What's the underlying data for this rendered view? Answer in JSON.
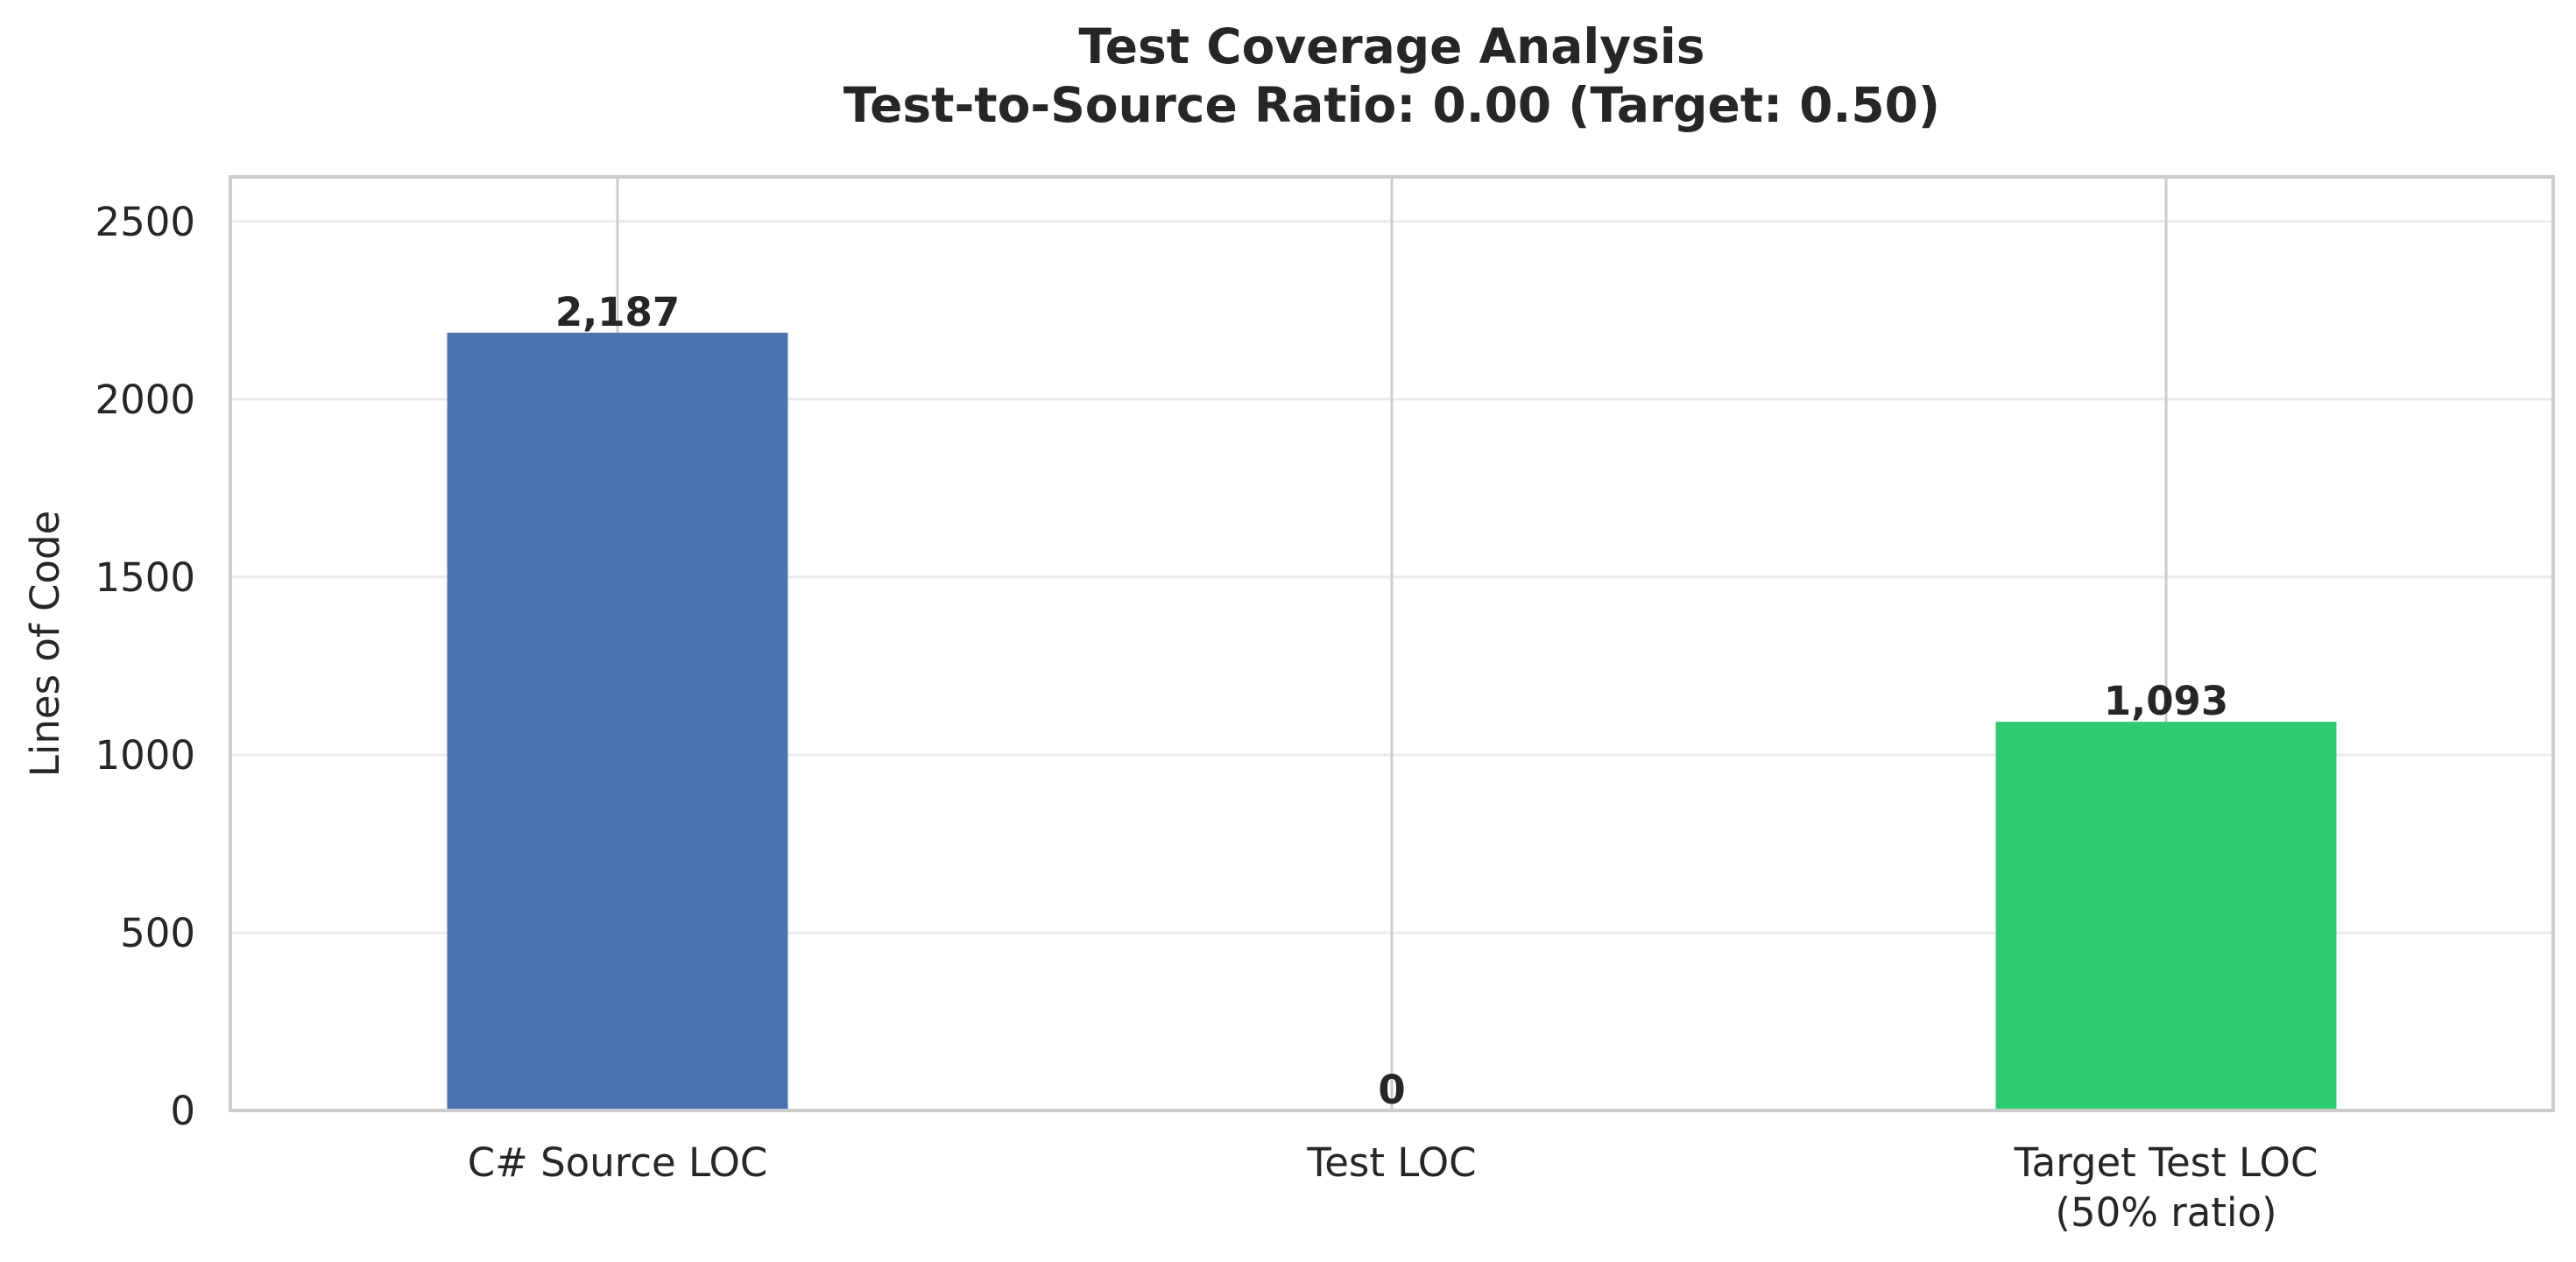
{
  "chart_data": {
    "type": "bar",
    "title": "Test Coverage Analysis",
    "subtitle": "Test-to-Source Ratio: 0.00 (Target: 0.50)",
    "ylabel": "Lines of Code",
    "xlabel": "",
    "categories": [
      [
        "C# Source LOC"
      ],
      [
        "Test LOC"
      ],
      [
        "Target Test LOC",
        "(50% ratio)"
      ]
    ],
    "values": [
      2187,
      0,
      1093
    ],
    "value_labels": [
      "2,187",
      "0",
      "1,093"
    ],
    "colors": [
      "#4c72b0",
      "#4c72b0",
      "#2ecc71"
    ],
    "ylim": [
      0,
      2625
    ],
    "yticks": [
      0,
      500,
      1000,
      1500,
      2000,
      2500
    ],
    "grid": true
  }
}
